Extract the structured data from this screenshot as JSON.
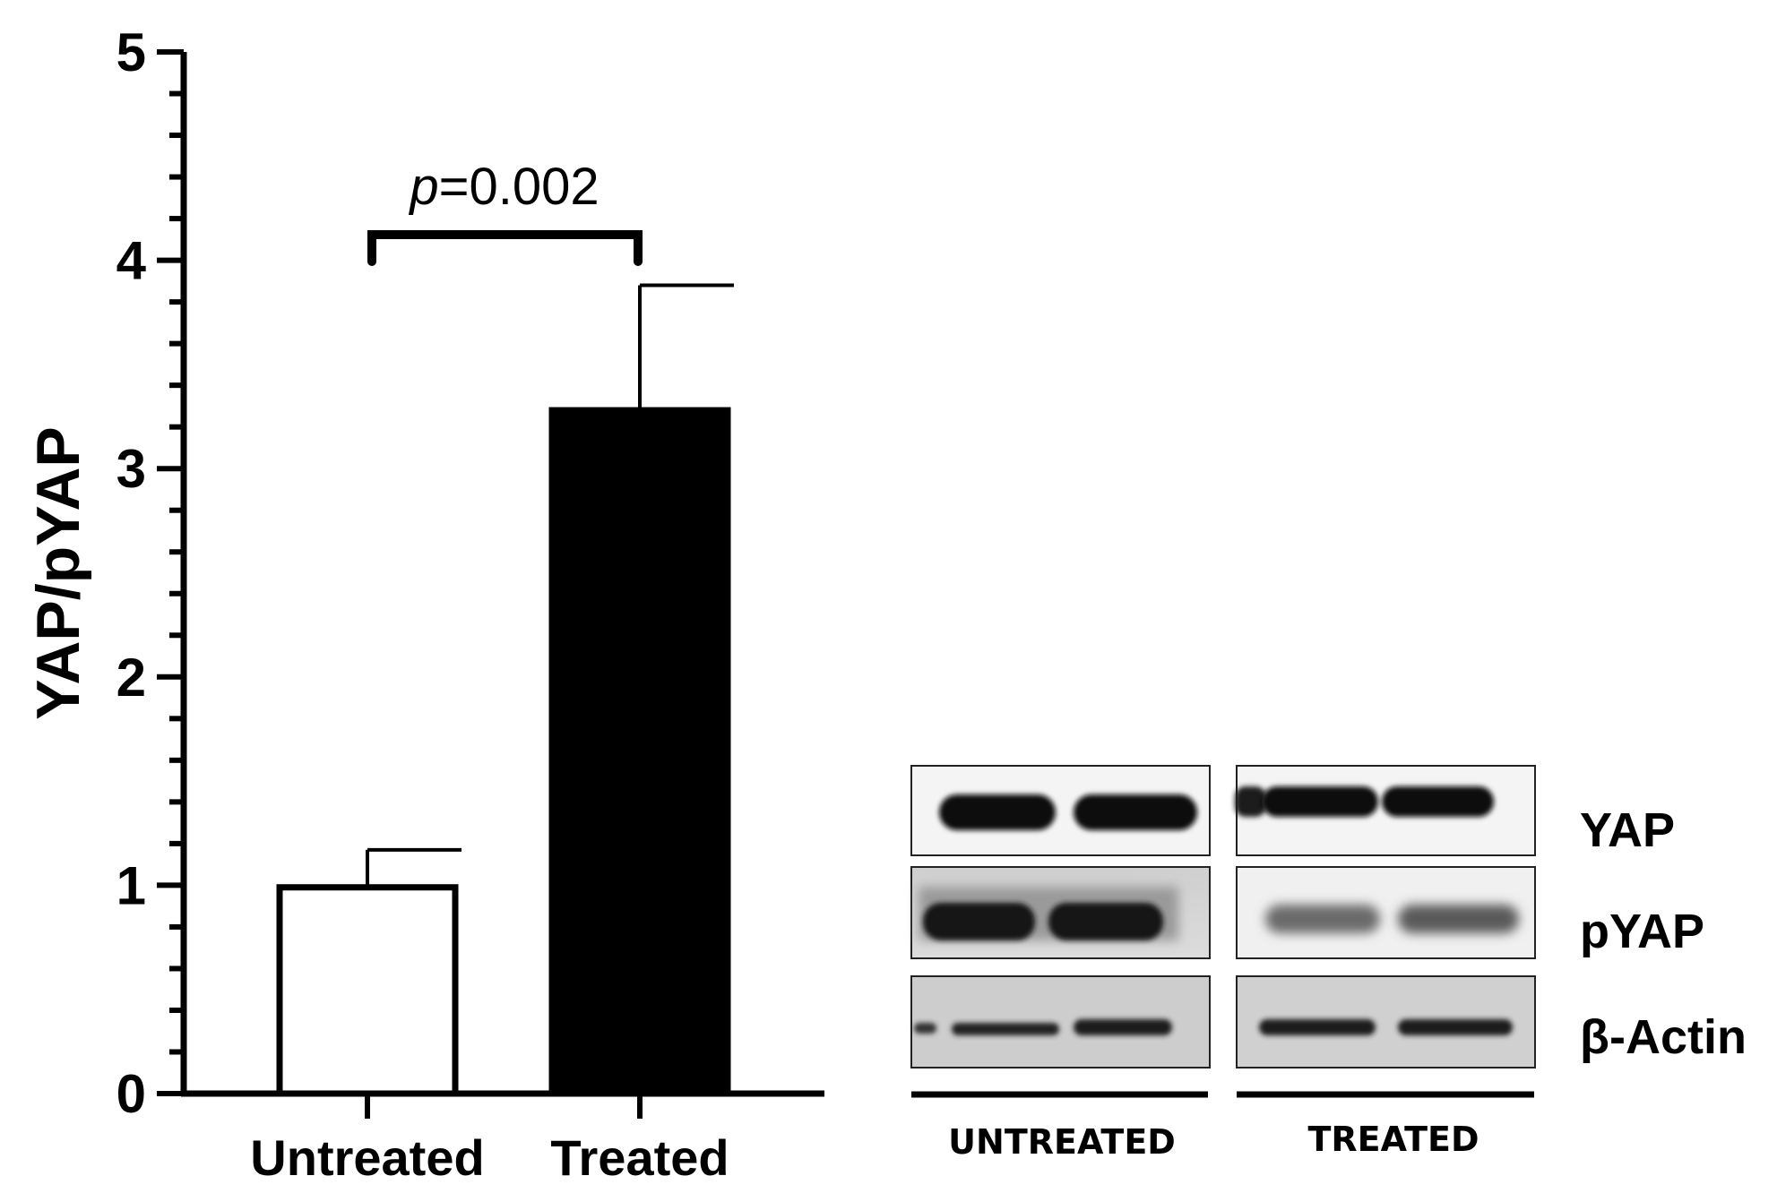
{
  "chart_data": {
    "type": "bar",
    "categories": [
      "Untreated",
      "Treated"
    ],
    "values": [
      0.99,
      3.28
    ],
    "errors": [
      0.18,
      0.6
    ],
    "bar_colors": [
      "#ffffff",
      "#000000"
    ],
    "ylabel": "YAP/pYAP",
    "ylim": [
      0,
      5
    ],
    "yticks": [
      "0",
      "1",
      "2",
      "3",
      "4",
      "5"
    ],
    "annotation": {
      "prefix": "p",
      "text": "=0.002"
    }
  },
  "blot": {
    "rows": [
      "YAP",
      "pYAP",
      "β-Actin"
    ],
    "groups": [
      "UNTREATED",
      "TREATED"
    ]
  }
}
